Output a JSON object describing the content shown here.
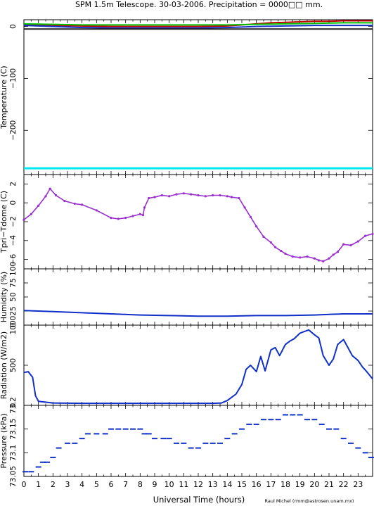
{
  "title": "SPM 1.5m Telescope. 30-03-2006. Precipitation = 0000□□ mm.",
  "credit": "Raul Michel (rmm@astrosen.unam.mx)",
  "xaxis": {
    "label": "Universal Time (hours)",
    "range": [
      0,
      24
    ],
    "ticks": [
      "0",
      "1",
      "2",
      "3",
      "4",
      "5",
      "6",
      "7",
      "8",
      "9",
      "10",
      "11",
      "12",
      "13",
      "14",
      "15",
      "16",
      "17",
      "18",
      "19",
      "20",
      "21",
      "22",
      "23"
    ]
  },
  "colors": {
    "red": "#c00000",
    "green": "#00c000",
    "blue": "#1030c8",
    "cyan": "#00e8f0",
    "purple": "#9a30d0",
    "dark": "#202020"
  },
  "chart_data": [
    {
      "type": "line",
      "ylabel": "Temperature (C)",
      "ylim": [
        -285,
        13
      ],
      "yticks": [
        0,
        -100,
        -200
      ],
      "ytick_labels": [
        "0",
        "−100",
        "−200"
      ],
      "series": [
        {
          "color": "red",
          "x": [
            0,
            2,
            4,
            6,
            8,
            10,
            12,
            14,
            15,
            16,
            17,
            18,
            19,
            20,
            21,
            22,
            23,
            24
          ],
          "y": [
            3,
            2,
            1,
            0,
            0,
            0,
            0,
            1,
            3,
            5,
            7,
            8,
            9,
            10,
            10,
            11,
            11,
            11
          ]
        },
        {
          "color": "green",
          "x": [
            0,
            2,
            4,
            6,
            8,
            10,
            12,
            14,
            16,
            18,
            20,
            22,
            24
          ],
          "y": [
            5,
            4,
            3,
            3,
            3,
            3,
            3,
            3,
            4,
            5,
            6,
            7,
            7
          ]
        },
        {
          "color": "blue",
          "x": [
            0,
            2,
            4,
            6,
            8,
            10,
            12,
            14,
            16,
            18,
            20,
            22,
            24
          ],
          "y": [
            2,
            0,
            -2,
            -3,
            -3,
            -3,
            -3,
            -2,
            0,
            1,
            2,
            2,
            2
          ]
        },
        {
          "color": "dark",
          "x": [
            0,
            24
          ],
          "y": [
            -5,
            -5
          ]
        },
        {
          "color": "cyan",
          "x": [
            0,
            24
          ],
          "y": [
            -273,
            -273
          ]
        }
      ]
    },
    {
      "type": "scatter",
      "ylabel": "Tpri−Tdome (C)",
      "ylim": [
        -7,
        3
      ],
      "yticks": [
        2,
        0,
        -2,
        -4,
        -6
      ],
      "ytick_labels": [
        "2",
        "0",
        "−2",
        "−4",
        "−6"
      ],
      "series": [
        {
          "color": "purple",
          "x": [
            0,
            0.5,
            1,
            1.5,
            1.8,
            2.2,
            2.8,
            3.5,
            4,
            5,
            6,
            6.5,
            7,
            7.5,
            8,
            8.2,
            8.3,
            8.6,
            9,
            9.5,
            10,
            10.5,
            11,
            11.5,
            12,
            12.5,
            13,
            13.5,
            14,
            14.3,
            14.8,
            15.2,
            15.6,
            16,
            16.5,
            17,
            17.3,
            17.7,
            18,
            18.5,
            19,
            19.5,
            20,
            20.3,
            20.6,
            21,
            21.3,
            21.6,
            22,
            22.5,
            23,
            23.5,
            24
          ],
          "y": [
            -1.8,
            -1.2,
            -0.3,
            0.7,
            1.5,
            0.8,
            0.2,
            -0.1,
            -0.2,
            -0.8,
            -1.6,
            -1.7,
            -1.6,
            -1.4,
            -1.2,
            -1.3,
            -0.5,
            0.5,
            0.6,
            0.8,
            0.7,
            0.9,
            1.0,
            0.9,
            0.8,
            0.7,
            0.8,
            0.8,
            0.7,
            0.6,
            0.5,
            -0.5,
            -1.5,
            -2.5,
            -3.6,
            -4.2,
            -4.7,
            -5.1,
            -5.4,
            -5.7,
            -5.8,
            -5.7,
            -5.9,
            -6.1,
            -6.2,
            -5.9,
            -5.5,
            -5.2,
            -4.4,
            -4.5,
            -4.1,
            -3.5,
            -3.3
          ]
        }
      ]
    },
    {
      "type": "line",
      "ylabel": "Humidity (%)",
      "ylim": [
        0,
        100
      ],
      "yticks": [
        0,
        25,
        50,
        75,
        100
      ],
      "ytick_labels": [
        "0",
        "25",
        "50",
        "75",
        "100"
      ],
      "series": [
        {
          "color": "blue",
          "x": [
            0,
            2,
            4,
            6,
            8,
            10,
            12,
            14,
            16,
            18,
            20,
            21,
            22,
            24
          ],
          "y": [
            26,
            24,
            22,
            20,
            18,
            17,
            16,
            16,
            17,
            17,
            18,
            19,
            20,
            20
          ]
        }
      ]
    },
    {
      "type": "line",
      "ylabel": "Radiation (W/m2)",
      "ylim": [
        0,
        1000
      ],
      "yticks": [
        0,
        500,
        1000
      ],
      "ytick_labels": [
        "0",
        "500",
        "1000"
      ],
      "series": [
        {
          "color": "blue",
          "x": [
            0,
            0.3,
            0.6,
            0.8,
            1,
            2,
            4,
            6,
            8,
            10,
            12,
            13,
            13.6,
            14,
            14.3,
            14.6,
            15,
            15.3,
            15.6,
            16,
            16.3,
            16.6,
            17,
            17.3,
            17.6,
            18,
            18.3,
            18.6,
            19,
            19.3,
            19.6,
            20,
            20.3,
            20.6,
            21,
            21.3,
            21.6,
            22,
            22.3,
            22.6,
            23,
            23.3,
            23.6,
            24
          ],
          "y": [
            410,
            420,
            350,
            120,
            50,
            30,
            25,
            25,
            25,
            25,
            25,
            25,
            30,
            60,
            100,
            140,
            260,
            450,
            500,
            420,
            610,
            430,
            690,
            720,
            620,
            760,
            800,
            830,
            900,
            920,
            940,
            880,
            840,
            620,
            500,
            580,
            760,
            820,
            720,
            620,
            560,
            480,
            420,
            330
          ]
        }
      ]
    },
    {
      "type": "scatter",
      "ylabel": "Pressure (kPa)",
      "ylim": [
        73.05,
        73.2
      ],
      "yticks": [
        73.05,
        73.1,
        73.15,
        73.2
      ],
      "ytick_labels": [
        "73.05",
        "73.1",
        "73.15",
        "73.2"
      ],
      "series": [
        {
          "color": "blue",
          "x": [
            0.1,
            0.5,
            1,
            1.3,
            1.6,
            2,
            2.4,
            3,
            3.5,
            4,
            4.4,
            5,
            5.6,
            6,
            6.5,
            7,
            7.5,
            8,
            8.3,
            8.6,
            9,
            9.6,
            10,
            10.5,
            11,
            11.5,
            12,
            12.5,
            13,
            13.5,
            14,
            14.5,
            15,
            15.5,
            16,
            16.5,
            17,
            17.5,
            18,
            18.5,
            19,
            19.5,
            20,
            20.5,
            21,
            21.5,
            22,
            22.5,
            23,
            23.5,
            23.9
          ],
          "y": [
            73.06,
            73.06,
            73.07,
            73.08,
            73.08,
            73.09,
            73.11,
            73.12,
            73.12,
            73.13,
            73.14,
            73.14,
            73.14,
            73.15,
            73.15,
            73.15,
            73.15,
            73.15,
            73.14,
            73.14,
            73.13,
            73.13,
            73.13,
            73.12,
            73.12,
            73.11,
            73.11,
            73.12,
            73.12,
            73.12,
            73.13,
            73.14,
            73.15,
            73.16,
            73.16,
            73.17,
            73.17,
            73.17,
            73.18,
            73.18,
            73.18,
            73.17,
            73.17,
            73.16,
            73.15,
            73.15,
            73.13,
            73.12,
            73.11,
            73.1,
            73.09
          ]
        }
      ]
    }
  ]
}
